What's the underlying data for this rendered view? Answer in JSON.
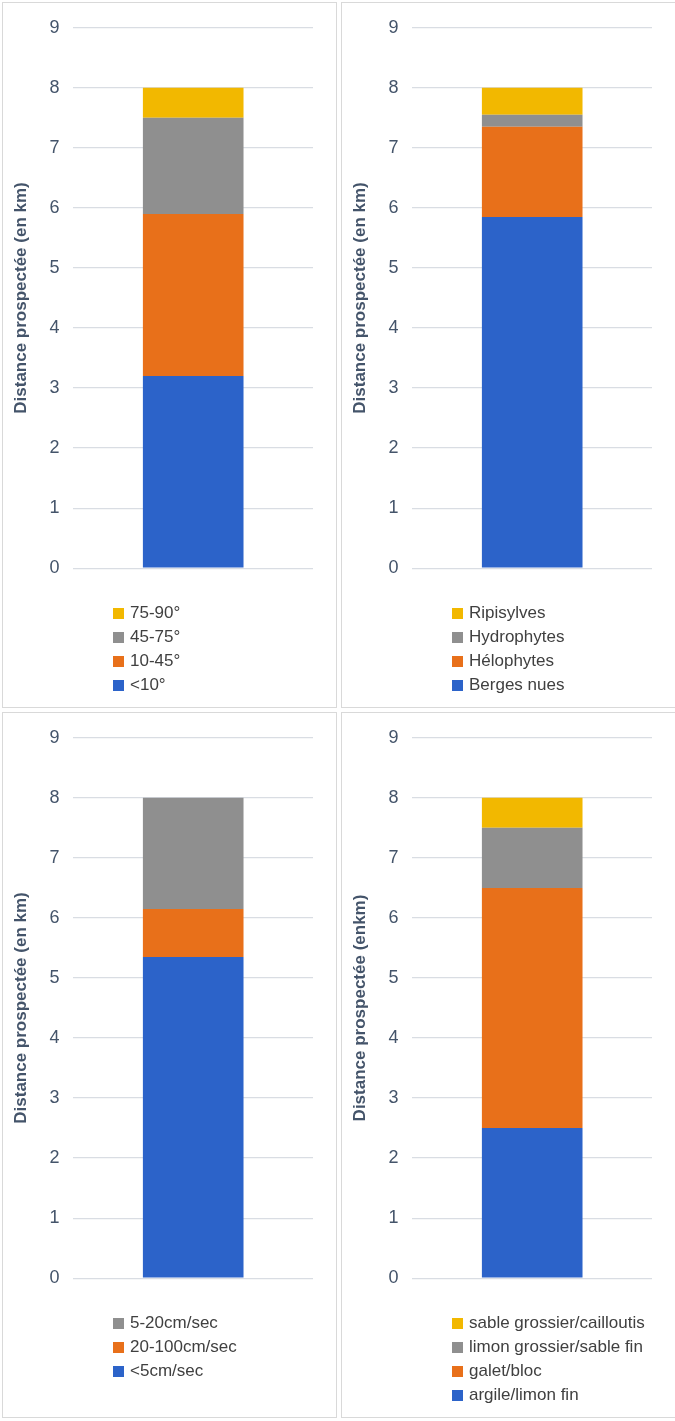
{
  "chart_data": [
    {
      "type": "bar",
      "stacked": true,
      "ylabel": "Distance prospectée (en km)",
      "categories": [
        null
      ],
      "ylim": [
        0,
        9
      ],
      "yticks": [
        0,
        1,
        2,
        3,
        4,
        5,
        6,
        7,
        8,
        9
      ],
      "grid": "y",
      "tick_labels": "y",
      "legend": "bottom",
      "series": [
        {
          "name": "<10°",
          "color": "#2c63c9",
          "values": [
            3.2
          ]
        },
        {
          "name": "10-45°",
          "color": "#e8701a",
          "values": [
            2.7
          ]
        },
        {
          "name": "45-75°",
          "color": "#8f8f8f",
          "values": [
            1.6
          ]
        },
        {
          "name": "75-90°",
          "color": "#f2b800",
          "values": [
            0.5
          ]
        }
      ]
    },
    {
      "type": "bar",
      "stacked": true,
      "ylabel": "Distance prospectée (en km)",
      "categories": [
        null
      ],
      "ylim": [
        0,
        9
      ],
      "yticks": [
        0,
        1,
        2,
        3,
        4,
        5,
        6,
        7,
        8,
        9
      ],
      "grid": "y",
      "tick_labels": "y",
      "legend": "bottom",
      "series": [
        {
          "name": "Berges nues",
          "color": "#2c63c9",
          "values": [
            5.85
          ]
        },
        {
          "name": "Hélophytes",
          "color": "#e8701a",
          "values": [
            1.5
          ]
        },
        {
          "name": "Hydrophytes",
          "color": "#8f8f8f",
          "values": [
            0.2
          ]
        },
        {
          "name": "Ripisylves",
          "color": "#f2b800",
          "values": [
            0.45
          ]
        }
      ]
    },
    {
      "type": "bar",
      "stacked": true,
      "ylabel": "Distance prospectée (en km)",
      "categories": [
        null
      ],
      "ylim": [
        0,
        9
      ],
      "yticks": [
        0,
        1,
        2,
        3,
        4,
        5,
        6,
        7,
        8,
        9
      ],
      "grid": "y",
      "tick_labels": "y",
      "legend": "bottom",
      "series": [
        {
          "name": "<5cm/sec",
          "color": "#2c63c9",
          "values": [
            5.35
          ]
        },
        {
          "name": "20-100cm/sec",
          "color": "#e8701a",
          "values": [
            0.8
          ]
        },
        {
          "name": "5-20cm/sec",
          "color": "#8f8f8f",
          "values": [
            1.85
          ]
        }
      ]
    },
    {
      "type": "bar",
      "stacked": true,
      "ylabel": "Distance prospectée (enkm)",
      "categories": [
        null
      ],
      "ylim": [
        0,
        9
      ],
      "yticks": [
        0,
        1,
        2,
        3,
        4,
        5,
        6,
        7,
        8,
        9
      ],
      "grid": "y",
      "tick_labels": "y",
      "legend": "bottom",
      "series": [
        {
          "name": "argile/limon fin",
          "color": "#2c63c9",
          "values": [
            2.5
          ]
        },
        {
          "name": "galet/bloc",
          "color": "#e8701a",
          "values": [
            4.0
          ]
        },
        {
          "name": "limon grossier/sable fin",
          "color": "#8f8f8f",
          "values": [
            1.0
          ]
        },
        {
          "name": "sable grossier/cailloutis",
          "color": "#f2b800",
          "values": [
            0.5
          ]
        }
      ]
    }
  ]
}
